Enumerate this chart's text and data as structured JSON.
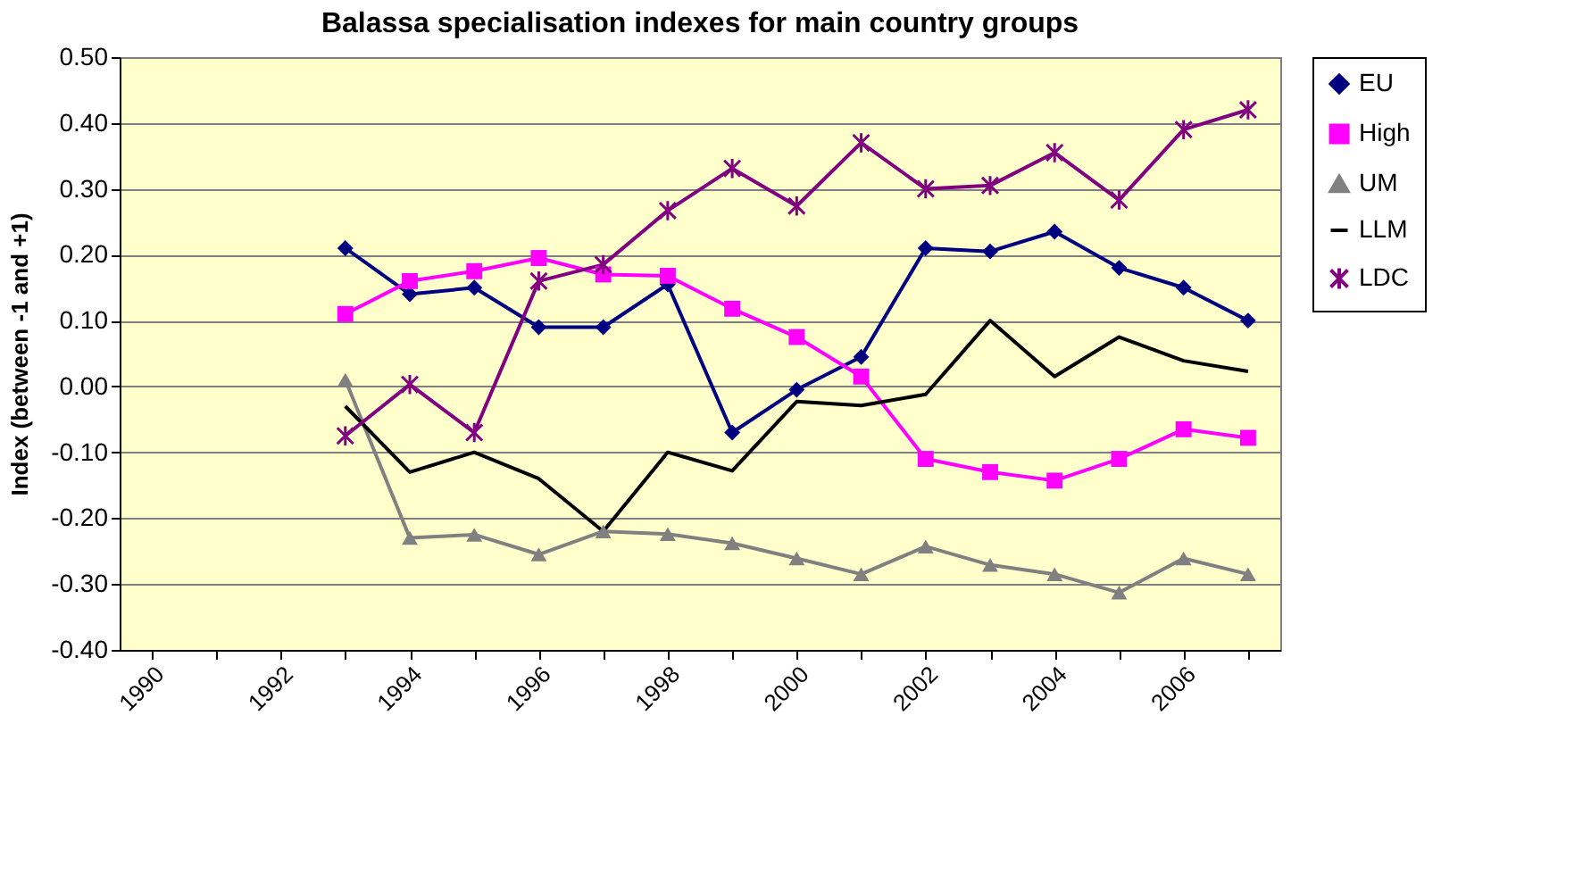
{
  "chart_data": {
    "type": "line",
    "title": "Balassa specialisation indexes for main country groups",
    "ylabel": "Index (between -1 and +1)",
    "categories": [
      "1990",
      null,
      "1992",
      null,
      "1994",
      null,
      "1996",
      null,
      "1998",
      null,
      "2000",
      null,
      "2002",
      null,
      "2004",
      null,
      "2006",
      null
    ],
    "series": [
      {
        "name": "EU",
        "color": "#000080",
        "marker": "diamond",
        "values": [
          null,
          null,
          null,
          0.21,
          0.14,
          0.15,
          0.09,
          0.09,
          0.155,
          -0.07,
          -0.005,
          0.045,
          0.21,
          0.205,
          0.235,
          0.18,
          0.15,
          0.1
        ]
      },
      {
        "name": "High",
        "color": "#ff00ff",
        "marker": "square",
        "values": [
          null,
          null,
          null,
          0.11,
          0.16,
          0.175,
          0.195,
          0.17,
          0.168,
          0.118,
          0.075,
          0.015,
          -0.11,
          -0.13,
          -0.143,
          -0.11,
          -0.065,
          -0.078
        ]
      },
      {
        "name": "UM",
        "color": "#808080",
        "marker": "triangle",
        "values": [
          null,
          null,
          null,
          0.01,
          -0.23,
          -0.225,
          -0.255,
          -0.22,
          -0.224,
          -0.238,
          -0.261,
          -0.285,
          -0.243,
          -0.271,
          -0.285,
          -0.313,
          -0.261,
          -0.285
        ]
      },
      {
        "name": "LLM",
        "color": "#000000",
        "marker": "none",
        "values": [
          null,
          null,
          null,
          -0.03,
          -0.13,
          -0.1,
          -0.14,
          -0.22,
          -0.1,
          -0.128,
          -0.023,
          -0.029,
          -0.012,
          0.1,
          0.015,
          0.075,
          0.039,
          0.023
        ]
      },
      {
        "name": "LDC",
        "color": "#800080",
        "marker": "cross",
        "values": [
          null,
          null,
          null,
          -0.075,
          0.003,
          -0.07,
          0.16,
          0.185,
          0.267,
          0.331,
          0.274,
          0.37,
          0.3,
          0.305,
          0.355,
          0.283,
          0.39,
          0.42
        ]
      }
    ],
    "ylim": [
      -0.4,
      0.5
    ],
    "yticks": [
      {
        "value": -0.4,
        "label": "-0.40"
      },
      {
        "value": -0.3,
        "label": "-0.30"
      },
      {
        "value": -0.2,
        "label": "-0.20"
      },
      {
        "value": -0.1,
        "label": "-0.10"
      },
      {
        "value": 0,
        "label": "0.00"
      },
      {
        "value": 0.1,
        "label": "0.10"
      },
      {
        "value": 0.2,
        "label": "0.20"
      },
      {
        "value": 0.3,
        "label": "0.30"
      },
      {
        "value": 0.4,
        "label": "0.40"
      },
      {
        "value": 0.5,
        "label": "0.50"
      }
    ],
    "grid": "y",
    "legend": "right",
    "line_style": "solid"
  }
}
